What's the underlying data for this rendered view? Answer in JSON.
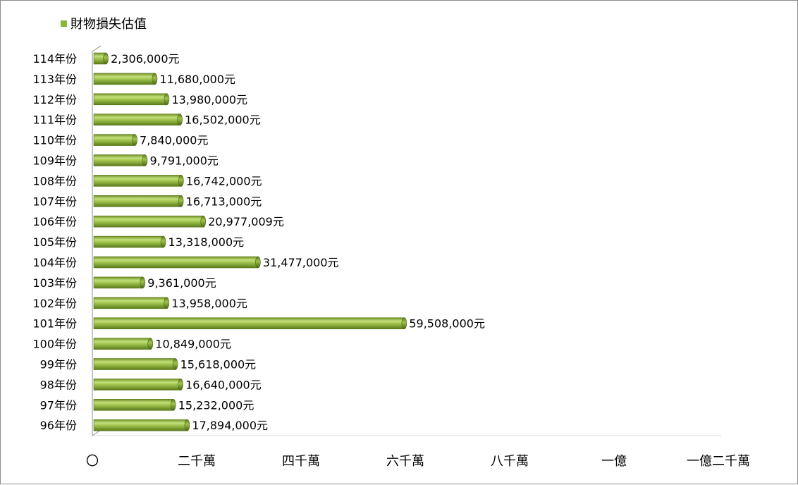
{
  "chart_data": {
    "type": "bar",
    "orientation": "horizontal",
    "legend": {
      "label": "財物損失估值",
      "position": "top-left"
    },
    "series": [
      {
        "name": "財物損失估值",
        "color": "#8db33a",
        "values": [
          2306000,
          11680000,
          13980000,
          16502000,
          7840000,
          9791000,
          16742000,
          16713000,
          20977009,
          13318000,
          31477000,
          9361000,
          13958000,
          59508000,
          10849000,
          15618000,
          16640000,
          15232000,
          17894000
        ]
      }
    ],
    "categories": [
      "114年份",
      "113年份",
      "112年份",
      "111年份",
      "110年份",
      "109年份",
      "108年份",
      "107年份",
      "106年份",
      "105年份",
      "104年份",
      "103年份",
      "102年份",
      "101年份",
      "100年份",
      "99年份",
      "98年份",
      "97年份",
      "96年份"
    ],
    "data_labels": [
      "2,306,000元",
      "11,680,000元",
      "13,980,000元",
      "16,502,000元",
      "7,840,000元",
      "9,791,000元",
      "16,742,000元",
      "16,713,000元",
      "20,977,009元",
      "13,318,000元",
      "31,477,000元",
      "9,361,000元",
      "13,958,000元",
      "59,508,000元",
      "10,849,000元",
      "15,618,000元",
      "16,640,000元",
      "15,232,000元",
      "17,894,000元"
    ],
    "x_ticks": [
      {
        "value": 0,
        "label": "〇"
      },
      {
        "value": 20000000,
        "label": "二千萬"
      },
      {
        "value": 40000000,
        "label": "四千萬"
      },
      {
        "value": 60000000,
        "label": "六千萬"
      },
      {
        "value": 80000000,
        "label": "八千萬"
      },
      {
        "value": 100000000,
        "label": "一億"
      },
      {
        "value": 120000000,
        "label": "一億二千萬"
      }
    ],
    "xlim": [
      0,
      120000000
    ],
    "grid": false
  }
}
